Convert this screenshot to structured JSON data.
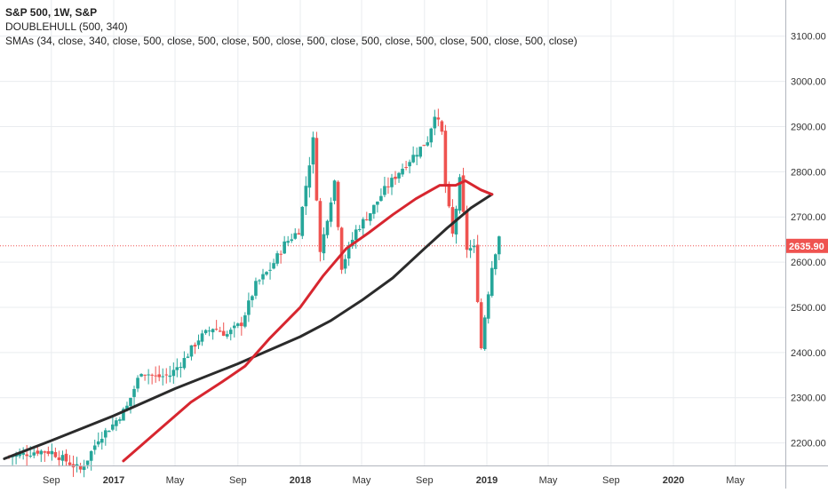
{
  "legend": {
    "title": "S&P 500, 1W, S&P",
    "indicator1": "DOUBLEHULL (500, 340)",
    "indicator2": "SMAs (34, close, 340, close, 500, close, 500, close, 500, close, 500, close, 500, close, 500, close, 500, close, 500, close)"
  },
  "price_label": "2635.90",
  "colors": {
    "up": "#26a69a",
    "down": "#ef5350",
    "sma_fast": "#d7262f",
    "sma_slow": "#2b2b2b",
    "price_line": "#ef5350",
    "grid": "#e9ecef",
    "axis_text": "#333333"
  },
  "chart_data": {
    "type": "line",
    "title": "S&P 500, 1W, S&P",
    "xlabel": "",
    "ylabel": "",
    "ylim": [
      2150,
      3180
    ],
    "y_ticks": [
      2200,
      2300,
      2400,
      2500,
      2600,
      2700,
      2800,
      2900,
      3000,
      3100
    ],
    "y_tick_labels": [
      "2200.00",
      "2300.00",
      "2400.00",
      "2500.00",
      "2600.00",
      "2700.00",
      "2800.00",
      "2900.00",
      "3000.00",
      "3100.00"
    ],
    "x_ticks": [
      {
        "label": "Sep",
        "date": "2016-09-01"
      },
      {
        "label": "2017",
        "date": "2017-01-01"
      },
      {
        "label": "May",
        "date": "2017-05-01"
      },
      {
        "label": "Sep",
        "date": "2017-09-01"
      },
      {
        "label": "2018",
        "date": "2018-01-01"
      },
      {
        "label": "May",
        "date": "2018-05-01"
      },
      {
        "label": "Sep",
        "date": "2018-09-01"
      },
      {
        "label": "2019",
        "date": "2019-01-01"
      },
      {
        "label": "May",
        "date": "2019-05-01"
      },
      {
        "label": "Sep",
        "date": "2019-09-01"
      },
      {
        "label": "2020",
        "date": "2020-01-01"
      },
      {
        "label": "May",
        "date": "2020-05-01"
      }
    ],
    "last_price": 2635.9,
    "series": [
      {
        "name": "S&P 500 close (weekly)",
        "x": [
          "2016-06-10",
          "2016-07-08",
          "2016-08-05",
          "2016-09-02",
          "2016-09-30",
          "2016-10-28",
          "2016-11-11",
          "2016-12-02",
          "2016-12-30",
          "2017-01-27",
          "2017-02-24",
          "2017-03-24",
          "2017-04-21",
          "2017-05-19",
          "2017-06-16",
          "2017-07-14",
          "2017-08-11",
          "2017-09-08",
          "2017-10-06",
          "2017-11-03",
          "2017-12-01",
          "2017-12-29",
          "2018-01-26",
          "2018-02-09",
          "2018-03-09",
          "2018-03-23",
          "2018-04-20",
          "2018-05-18",
          "2018-06-15",
          "2018-07-13",
          "2018-08-10",
          "2018-09-07",
          "2018-09-21",
          "2018-10-05",
          "2018-10-12",
          "2018-10-26",
          "2018-11-09",
          "2018-11-23",
          "2018-12-07",
          "2018-12-21",
          "2018-12-28",
          "2019-01-11",
          "2019-01-25"
        ],
        "values": [
          2170,
          2175,
          2182,
          2180,
          2160,
          2140,
          2165,
          2210,
          2240,
          2280,
          2360,
          2345,
          2350,
          2385,
          2430,
          2455,
          2440,
          2465,
          2550,
          2585,
          2640,
          2670,
          2870,
          2620,
          2780,
          2590,
          2670,
          2710,
          2760,
          2800,
          2835,
          2870,
          2930,
          2885,
          2770,
          2660,
          2780,
          2630,
          2630,
          2410,
          2480,
          2590,
          2660
        ]
      },
      {
        "name": "SMA 34",
        "x": [
          "2017-01-20",
          "2017-04-01",
          "2017-06-01",
          "2017-08-01",
          "2017-09-15",
          "2017-11-01",
          "2018-01-01",
          "2018-02-15",
          "2018-04-01",
          "2018-05-15",
          "2018-07-01",
          "2018-08-15",
          "2018-09-15",
          "2018-10-01",
          "2018-11-01",
          "2018-11-20",
          "2018-12-20",
          "2019-01-11"
        ],
        "values": [
          2160,
          2230,
          2290,
          2335,
          2370,
          2430,
          2500,
          2570,
          2630,
          2665,
          2705,
          2740,
          2760,
          2770,
          2770,
          2780,
          2760,
          2750
        ]
      },
      {
        "name": "SMA 340",
        "x": [
          "2016-06-01",
          "2016-09-01",
          "2017-01-01",
          "2017-05-01",
          "2017-09-01",
          "2018-01-01",
          "2018-03-01",
          "2018-05-01",
          "2018-07-01",
          "2018-09-01",
          "2018-10-15",
          "2018-12-01",
          "2019-01-11"
        ],
        "values": [
          2165,
          2205,
          2260,
          2320,
          2375,
          2435,
          2470,
          2515,
          2565,
          2630,
          2675,
          2720,
          2750
        ]
      }
    ]
  }
}
